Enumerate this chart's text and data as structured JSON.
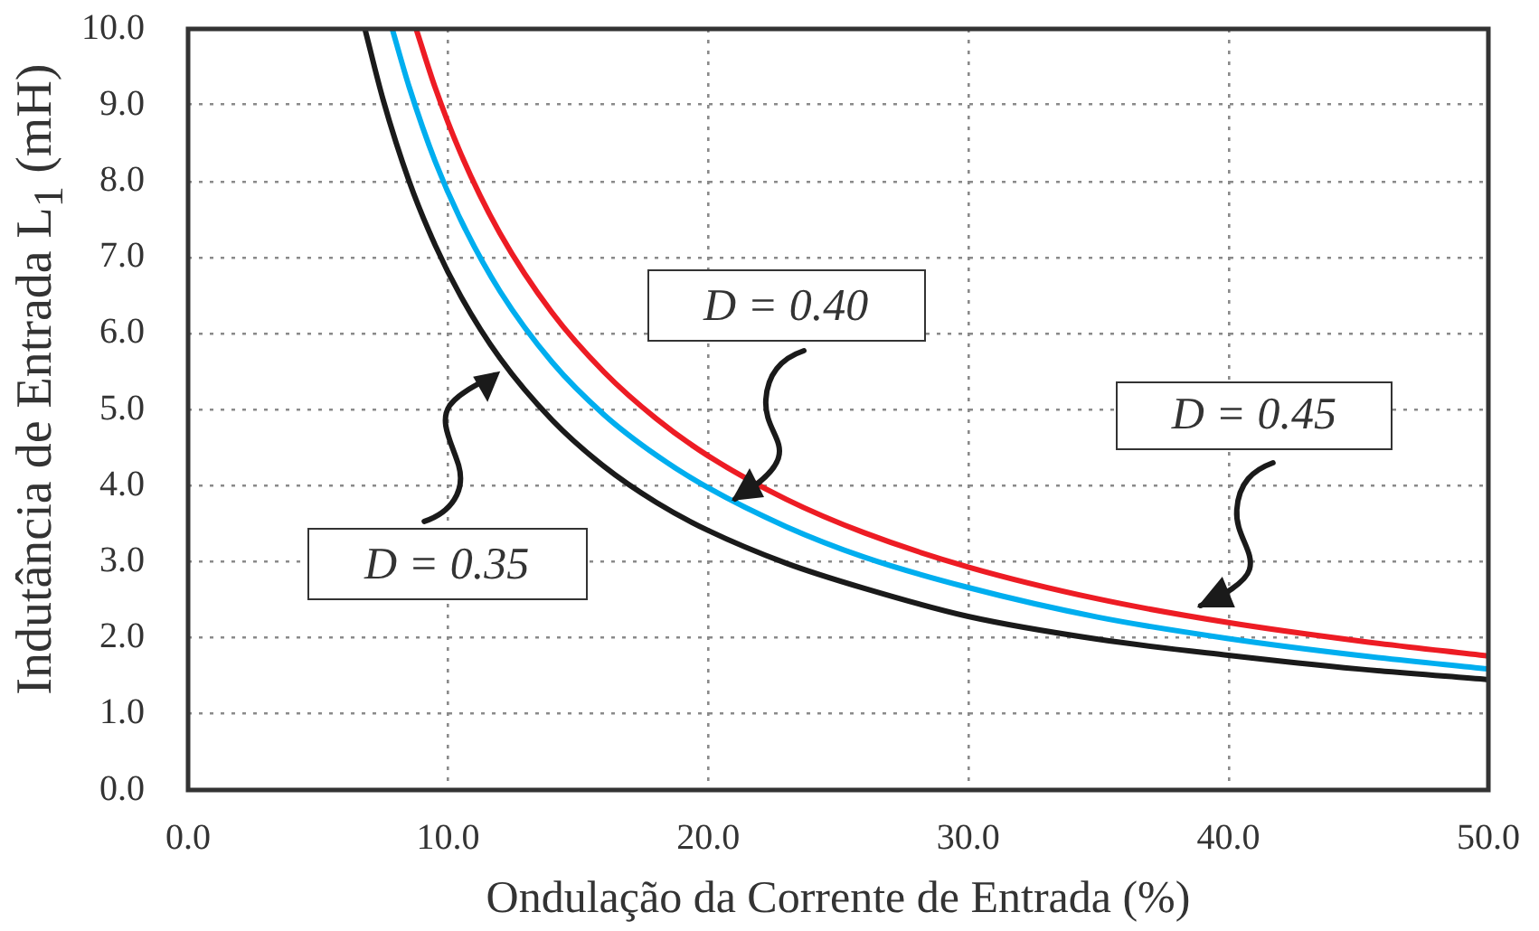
{
  "chart_data": {
    "type": "line",
    "xlabel": "Ondulação da Corrente de Entrada (%)",
    "ylabel": "Indutância de Entrada  L$_{1}$ (mH)",
    "xlim": [
      0,
      50
    ],
    "ylim": [
      0,
      10
    ],
    "xticks": [
      {
        "value": 0,
        "label": "0.0"
      },
      {
        "value": 10,
        "label": "10.0"
      },
      {
        "value": 20,
        "label": "20.0"
      },
      {
        "value": 30,
        "label": "30.0"
      },
      {
        "value": 40,
        "label": "40.0"
      },
      {
        "value": 50,
        "label": "50.0"
      }
    ],
    "yticks": [
      {
        "value": 0,
        "label": "0.0"
      },
      {
        "value": 1,
        "label": "1.0"
      },
      {
        "value": 2,
        "label": "2.0"
      },
      {
        "value": 3,
        "label": "3.0"
      },
      {
        "value": 4,
        "label": "4.0"
      },
      {
        "value": 5,
        "label": "5.0"
      },
      {
        "value": 6,
        "label": "6.0"
      },
      {
        "value": 7,
        "label": "7.0"
      },
      {
        "value": 8,
        "label": "8.0"
      },
      {
        "value": 9,
        "label": "9.0"
      },
      {
        "value": 10,
        "label": "10.0"
      }
    ],
    "grid": true,
    "line_style": "solid",
    "series": [
      {
        "color": "#1a1a1a",
        "x": [
          6.8,
          7.5,
          8.5,
          9.5,
          10.5,
          12,
          14,
          16,
          18,
          20,
          23,
          26,
          30,
          35,
          40,
          45,
          50
        ],
        "values": [
          10.0,
          9.07,
          8.0,
          7.16,
          6.48,
          5.67,
          4.86,
          4.25,
          3.78,
          3.41,
          2.98,
          2.65,
          2.28,
          1.98,
          1.77,
          1.59,
          1.45
        ]
      },
      {
        "color": "#00aeef",
        "x": [
          7.85,
          8.5,
          9.5,
          10.5,
          12,
          14,
          16,
          18,
          20,
          23,
          26,
          30,
          35,
          40,
          45,
          50
        ],
        "values": [
          10.0,
          9.24,
          8.26,
          7.48,
          6.55,
          5.62,
          4.93,
          4.4,
          3.97,
          3.46,
          3.06,
          2.66,
          2.27,
          1.99,
          1.77,
          1.59
        ]
      },
      {
        "color": "#ed1c24",
        "x": [
          8.77,
          9.5,
          10.5,
          12,
          14,
          16,
          18,
          20,
          23,
          26,
          30,
          35,
          40,
          45,
          50
        ],
        "values": [
          10.0,
          9.23,
          8.35,
          7.31,
          6.27,
          5.49,
          4.88,
          4.39,
          3.82,
          3.38,
          2.93,
          2.51,
          2.2,
          1.96,
          1.76
        ]
      }
    ],
    "annotations": [
      {
        "text": "D = 0.35",
        "x": 12.0,
        "y": 5.5
      },
      {
        "text": "D = 0.40",
        "x": 20.9,
        "y": 3.8
      },
      {
        "text": "D = 0.45",
        "x": 38.8,
        "y": 2.4
      }
    ]
  }
}
